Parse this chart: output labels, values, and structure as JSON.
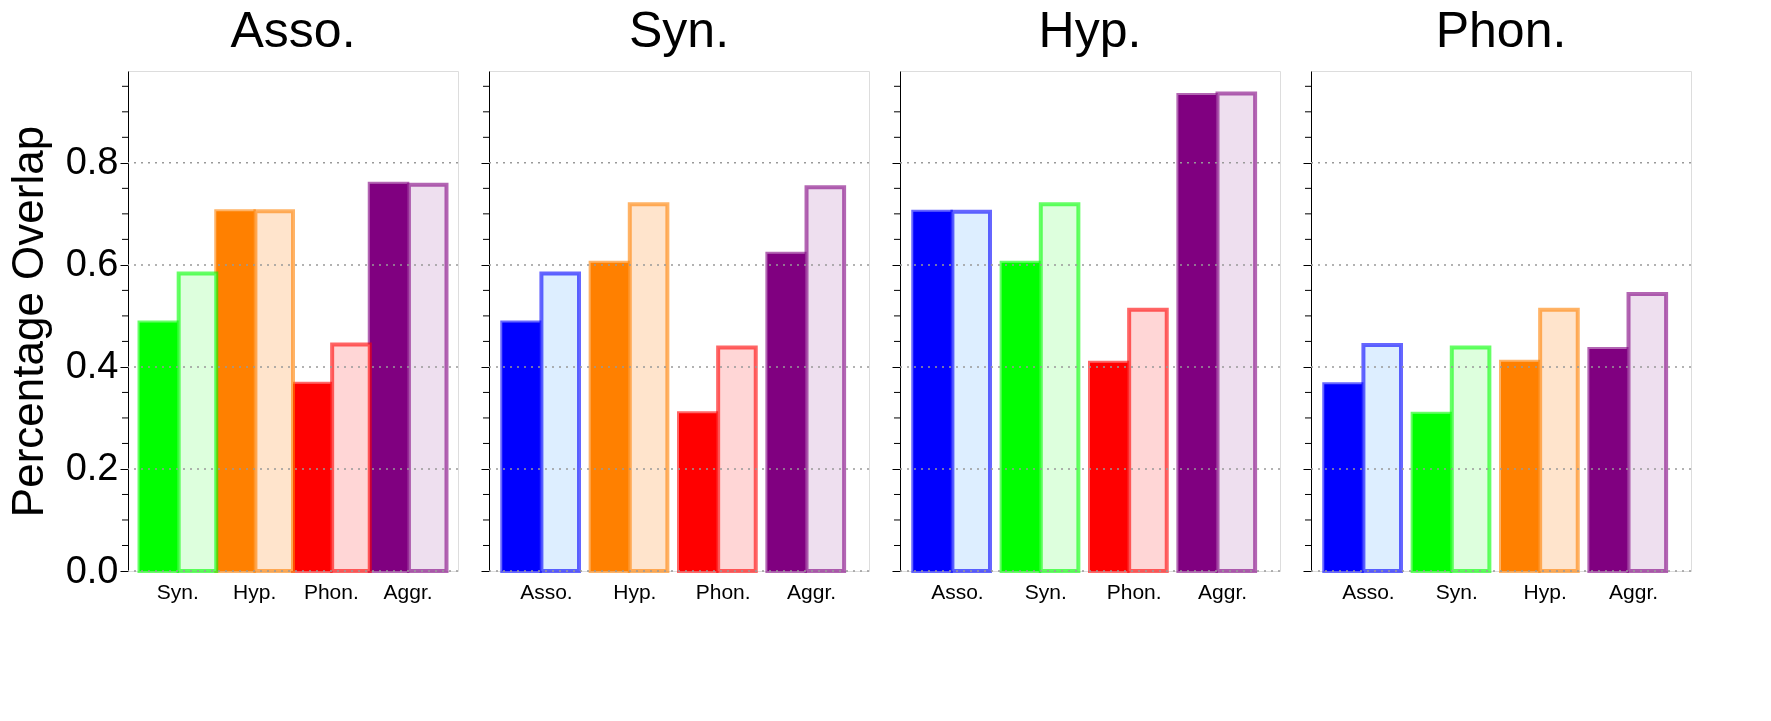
{
  "chart_data": [
    {
      "type": "bar",
      "title": "Asso.",
      "ylabel": "Percentage Overlap",
      "categories": [
        "Syn.",
        "Hyp.",
        "Phon.",
        "Aggr."
      ],
      "ylim": [
        0,
        0.98
      ],
      "yticks": [
        {
          "value": 0,
          "label": "0.0"
        },
        {
          "value": 0.05,
          "label": null
        },
        {
          "value": 0.1,
          "label": null
        },
        {
          "value": 0.15,
          "label": null
        },
        0.2,
        {
          "value": 0.25,
          "label": null
        },
        {
          "value": 0.3,
          "label": null
        },
        {
          "value": 0.35,
          "label": null
        },
        0.4,
        {
          "value": 0.45,
          "label": null
        },
        {
          "value": 0.5,
          "label": null
        },
        {
          "value": 0.55,
          "label": null
        },
        0.6,
        {
          "value": 0.65,
          "label": null
        },
        {
          "value": 0.7,
          "label": null
        },
        {
          "value": 0.75,
          "label": null
        },
        0.8,
        {
          "value": 0.85,
          "label": null
        },
        {
          "value": 0.9,
          "label": null
        },
        {
          "value": 0.95,
          "label": null
        }
      ],
      "grid": "y",
      "legend": false,
      "series": [
        {
          "colors": [
            "#00ff00",
            "#ff8000",
            "#ff0000",
            "#800080"
          ],
          "values": [
            0.487,
            0.705,
            0.367,
            0.759
          ]
        },
        {
          "colors": [
            "#ddffdd",
            "#ffe4cc",
            "#ffd6d6",
            "#eedfef"
          ],
          "values": [
            0.583,
            0.705,
            0.444,
            0.757
          ]
        }
      ]
    },
    {
      "type": "bar",
      "title": "Syn.",
      "categories": [
        "Asso.",
        "Hyp.",
        "Phon.",
        "Aggr."
      ],
      "ylim": [
        0,
        0.98
      ],
      "yticks": [
        0,
        {
          "value": 0.05,
          "label": null
        },
        {
          "value": 0.1,
          "label": null
        },
        {
          "value": 0.15,
          "label": null
        },
        0.2,
        {
          "value": 0.25,
          "label": null
        },
        {
          "value": 0.3,
          "label": null
        },
        {
          "value": 0.35,
          "label": null
        },
        0.4,
        {
          "value": 0.45,
          "label": null
        },
        {
          "value": 0.5,
          "label": null
        },
        {
          "value": 0.55,
          "label": null
        },
        0.6,
        {
          "value": 0.65,
          "label": null
        },
        {
          "value": 0.7,
          "label": null
        },
        {
          "value": 0.75,
          "label": null
        },
        0.8,
        {
          "value": 0.85,
          "label": null
        },
        {
          "value": 0.9,
          "label": null
        },
        {
          "value": 0.95,
          "label": null
        }
      ],
      "grid": "y",
      "legend": false,
      "tick_labels": "x",
      "series": [
        {
          "colors": [
            "#0000ff",
            "#ff8000",
            "#ff0000",
            "#800080"
          ],
          "values": [
            0.487,
            0.604,
            0.309,
            0.622
          ]
        },
        {
          "colors": [
            "#ddeeff",
            "#ffe4cc",
            "#ffd6d6",
            "#eedfef"
          ],
          "values": [
            0.583,
            0.719,
            0.438,
            0.752
          ]
        }
      ]
    },
    {
      "type": "bar",
      "title": "Hyp.",
      "categories": [
        "Asso.",
        "Syn.",
        "Phon.",
        "Aggr."
      ],
      "ylim": [
        0,
        0.98
      ],
      "yticks": [
        0,
        {
          "value": 0.05,
          "label": null
        },
        {
          "value": 0.1,
          "label": null
        },
        {
          "value": 0.15,
          "label": null
        },
        0.2,
        {
          "value": 0.25,
          "label": null
        },
        {
          "value": 0.3,
          "label": null
        },
        {
          "value": 0.35,
          "label": null
        },
        0.4,
        {
          "value": 0.45,
          "label": null
        },
        {
          "value": 0.5,
          "label": null
        },
        {
          "value": 0.55,
          "label": null
        },
        0.6,
        {
          "value": 0.65,
          "label": null
        },
        {
          "value": 0.7,
          "label": null
        },
        {
          "value": 0.75,
          "label": null
        },
        0.8,
        {
          "value": 0.85,
          "label": null
        },
        {
          "value": 0.9,
          "label": null
        },
        {
          "value": 0.95,
          "label": null
        }
      ],
      "grid": "y",
      "legend": false,
      "tick_labels": "x",
      "series": [
        {
          "colors": [
            "#0000ff",
            "#00ff00",
            "#ff0000",
            "#800080"
          ],
          "values": [
            0.704,
            0.604,
            0.408,
            0.933
          ]
        },
        {
          "colors": [
            "#ddeeff",
            "#ddffdd",
            "#ffd6d6",
            "#eedfef"
          ],
          "values": [
            0.704,
            0.719,
            0.512,
            0.936
          ]
        }
      ]
    },
    {
      "type": "bar",
      "title": "Phon.",
      "categories": [
        "Asso.",
        "Syn.",
        "Hyp.",
        "Aggr."
      ],
      "ylim": [
        0,
        0.98
      ],
      "yticks": [
        0,
        {
          "value": 0.05,
          "label": null
        },
        {
          "value": 0.1,
          "label": null
        },
        {
          "value": 0.15,
          "label": null
        },
        0.2,
        {
          "value": 0.25,
          "label": null
        },
        {
          "value": 0.3,
          "label": null
        },
        {
          "value": 0.35,
          "label": null
        },
        0.4,
        {
          "value": 0.45,
          "label": null
        },
        {
          "value": 0.5,
          "label": null
        },
        {
          "value": 0.55,
          "label": null
        },
        0.6,
        {
          "value": 0.65,
          "label": null
        },
        {
          "value": 0.7,
          "label": null
        },
        {
          "value": 0.75,
          "label": null
        },
        0.8,
        {
          "value": 0.85,
          "label": null
        },
        {
          "value": 0.9,
          "label": null
        },
        {
          "value": 0.95,
          "label": null
        }
      ],
      "grid": "y",
      "legend": false,
      "tick_labels": "x",
      "series": [
        {
          "colors": [
            "#0000ff",
            "#00ff00",
            "#ff8000",
            "#800080"
          ],
          "values": [
            0.366,
            0.308,
            0.41,
            0.435
          ]
        },
        {
          "colors": [
            "#ddeeff",
            "#ddffdd",
            "#ffe4cc",
            "#eedfef"
          ],
          "values": [
            0.443,
            0.438,
            0.512,
            0.543
          ]
        }
      ]
    }
  ]
}
